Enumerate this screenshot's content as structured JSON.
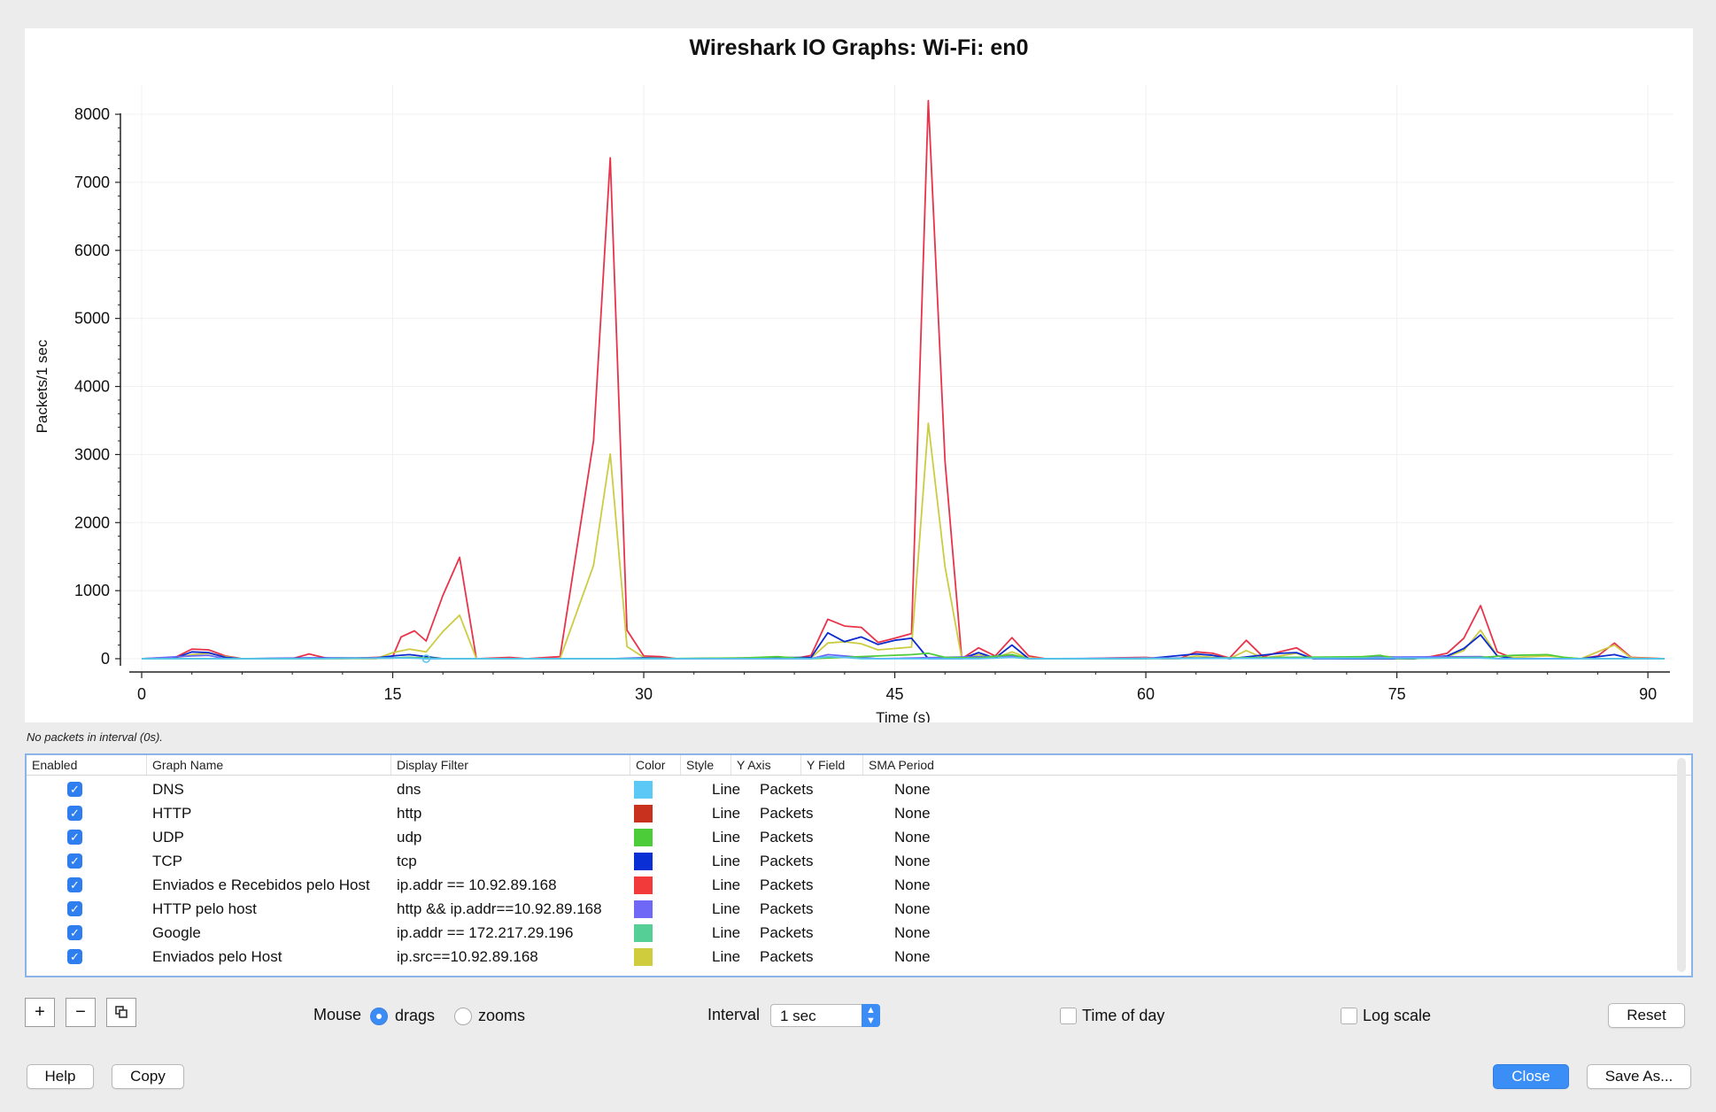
{
  "chart_data": {
    "type": "line",
    "title": "Wireshark IO Graphs: Wi-Fi: en0",
    "xlabel": "Time (s)",
    "ylabel": "Packets/1 sec",
    "xlim": [
      0,
      91
    ],
    "ylim": [
      0,
      8300
    ],
    "xticks": [
      0,
      15,
      30,
      45,
      60,
      75,
      90
    ],
    "yticks": [
      0,
      1000,
      2000,
      3000,
      4000,
      5000,
      6000,
      7000,
      8000
    ],
    "grid": true,
    "series": [
      {
        "name": "Enviados e Recebidos pelo Host",
        "color": "#e8334a",
        "points": [
          [
            0,
            0
          ],
          [
            1,
            10
          ],
          [
            2,
            20
          ],
          [
            3,
            140
          ],
          [
            4,
            130
          ],
          [
            5,
            40
          ],
          [
            6,
            0
          ],
          [
            8,
            0
          ],
          [
            9,
            0
          ],
          [
            10,
            70
          ],
          [
            11,
            10
          ],
          [
            12,
            0
          ],
          [
            14,
            20
          ],
          [
            15,
            30
          ],
          [
            15.5,
            320
          ],
          [
            16.3,
            410
          ],
          [
            17,
            260
          ],
          [
            18,
            930
          ],
          [
            19,
            1490
          ],
          [
            20,
            0
          ],
          [
            22,
            20
          ],
          [
            23,
            0
          ],
          [
            25,
            30
          ],
          [
            27,
            3200
          ],
          [
            28,
            7360
          ],
          [
            29,
            420
          ],
          [
            30,
            40
          ],
          [
            31,
            30
          ],
          [
            32,
            0
          ],
          [
            34,
            0
          ],
          [
            36,
            0
          ],
          [
            38,
            0
          ],
          [
            39,
            0
          ],
          [
            40,
            50
          ],
          [
            41,
            580
          ],
          [
            42,
            480
          ],
          [
            43,
            460
          ],
          [
            44,
            240
          ],
          [
            45,
            300
          ],
          [
            46,
            370
          ],
          [
            47,
            8200
          ],
          [
            48,
            2900
          ],
          [
            49,
            0
          ],
          [
            50,
            160
          ],
          [
            51,
            40
          ],
          [
            52,
            310
          ],
          [
            53,
            40
          ],
          [
            54,
            0
          ],
          [
            56,
            0
          ],
          [
            58,
            10
          ],
          [
            60,
            20
          ],
          [
            61,
            0
          ],
          [
            62,
            0
          ],
          [
            63,
            100
          ],
          [
            64,
            80
          ],
          [
            65,
            10
          ],
          [
            66,
            270
          ],
          [
            67,
            30
          ],
          [
            68,
            100
          ],
          [
            69,
            160
          ],
          [
            70,
            10
          ],
          [
            72,
            0
          ],
          [
            75,
            0
          ],
          [
            76,
            0
          ],
          [
            77,
            30
          ],
          [
            78,
            80
          ],
          [
            79,
            300
          ],
          [
            80,
            780
          ],
          [
            81,
            100
          ],
          [
            82,
            0
          ],
          [
            84,
            0
          ],
          [
            86,
            0
          ],
          [
            87,
            40
          ],
          [
            88,
            230
          ],
          [
            89,
            20
          ],
          [
            90,
            10
          ],
          [
            91,
            0
          ]
        ]
      },
      {
        "name": "Enviados pelo Host",
        "color": "#cccc44",
        "points": [
          [
            0,
            0
          ],
          [
            2,
            10
          ],
          [
            3,
            60
          ],
          [
            4,
            80
          ],
          [
            5,
            30
          ],
          [
            6,
            0
          ],
          [
            9,
            0
          ],
          [
            10,
            0
          ],
          [
            14,
            0
          ],
          [
            15,
            90
          ],
          [
            16,
            140
          ],
          [
            17,
            100
          ],
          [
            18,
            400
          ],
          [
            19,
            640
          ],
          [
            20,
            0
          ],
          [
            25,
            0
          ],
          [
            27,
            1370
          ],
          [
            28,
            3010
          ],
          [
            29,
            180
          ],
          [
            30,
            20
          ],
          [
            32,
            0
          ],
          [
            36,
            10
          ],
          [
            38,
            20
          ],
          [
            40,
            10
          ],
          [
            41,
            230
          ],
          [
            42,
            250
          ],
          [
            43,
            220
          ],
          [
            44,
            130
          ],
          [
            45,
            150
          ],
          [
            46,
            170
          ],
          [
            47,
            3460
          ],
          [
            48,
            1350
          ],
          [
            49,
            0
          ],
          [
            50,
            60
          ],
          [
            51,
            10
          ],
          [
            52,
            100
          ],
          [
            53,
            10
          ],
          [
            54,
            0
          ],
          [
            58,
            0
          ],
          [
            60,
            10
          ],
          [
            62,
            0
          ],
          [
            63,
            40
          ],
          [
            65,
            0
          ],
          [
            66,
            120
          ],
          [
            67,
            10
          ],
          [
            68,
            40
          ],
          [
            69,
            80
          ],
          [
            70,
            0
          ],
          [
            72,
            20
          ],
          [
            74,
            40
          ],
          [
            76,
            0
          ],
          [
            78,
            30
          ],
          [
            79,
            120
          ],
          [
            80,
            420
          ],
          [
            81,
            40
          ],
          [
            82,
            20
          ],
          [
            84,
            40
          ],
          [
            86,
            0
          ],
          [
            88,
            200
          ],
          [
            89,
            10
          ],
          [
            91,
            0
          ]
        ]
      },
      {
        "name": "TCP",
        "color": "#0b2bcf",
        "points": [
          [
            0,
            0
          ],
          [
            2,
            10
          ],
          [
            3,
            100
          ],
          [
            4,
            90
          ],
          [
            5,
            20
          ],
          [
            6,
            0
          ],
          [
            10,
            10
          ],
          [
            14,
            10
          ],
          [
            15,
            40
          ],
          [
            16,
            60
          ],
          [
            17,
            30
          ],
          [
            18,
            0
          ],
          [
            20,
            0
          ],
          [
            28,
            0
          ],
          [
            30,
            10
          ],
          [
            32,
            0
          ],
          [
            40,
            20
          ],
          [
            41,
            380
          ],
          [
            42,
            250
          ],
          [
            43,
            320
          ],
          [
            44,
            210
          ],
          [
            45,
            270
          ],
          [
            46,
            300
          ],
          [
            47,
            0
          ],
          [
            49,
            0
          ],
          [
            50,
            90
          ],
          [
            51,
            10
          ],
          [
            52,
            200
          ],
          [
            53,
            0
          ],
          [
            60,
            0
          ],
          [
            63,
            70
          ],
          [
            64,
            50
          ],
          [
            65,
            0
          ],
          [
            68,
            80
          ],
          [
            69,
            90
          ],
          [
            70,
            0
          ],
          [
            76,
            0
          ],
          [
            78,
            40
          ],
          [
            79,
            150
          ],
          [
            80,
            350
          ],
          [
            81,
            40
          ],
          [
            82,
            0
          ],
          [
            86,
            0
          ],
          [
            88,
            60
          ],
          [
            89,
            0
          ],
          [
            91,
            0
          ]
        ]
      },
      {
        "name": "HTTP pelo host",
        "color": "#6b66f5",
        "points": [
          [
            0,
            0
          ],
          [
            3,
            40
          ],
          [
            4,
            50
          ],
          [
            5,
            0
          ],
          [
            15,
            10
          ],
          [
            16,
            20
          ],
          [
            17,
            0
          ],
          [
            40,
            0
          ],
          [
            41,
            60
          ],
          [
            42,
            40
          ],
          [
            43,
            20
          ],
          [
            44,
            0
          ],
          [
            52,
            40
          ],
          [
            53,
            0
          ],
          [
            80,
            30
          ],
          [
            81,
            0
          ],
          [
            91,
            0
          ]
        ]
      },
      {
        "name": "UDP",
        "color": "#4fcc3a",
        "points": [
          [
            0,
            0
          ],
          [
            5,
            0
          ],
          [
            10,
            0
          ],
          [
            15,
            10
          ],
          [
            16,
            20
          ],
          [
            17,
            10
          ],
          [
            18,
            0
          ],
          [
            30,
            0
          ],
          [
            36,
            10
          ],
          [
            38,
            30
          ],
          [
            39,
            10
          ],
          [
            40,
            0
          ],
          [
            44,
            40
          ],
          [
            46,
            60
          ],
          [
            47,
            80
          ],
          [
            48,
            20
          ],
          [
            50,
            10
          ],
          [
            52,
            60
          ],
          [
            53,
            0
          ],
          [
            60,
            0
          ],
          [
            73,
            30
          ],
          [
            74,
            50
          ],
          [
            75,
            0
          ],
          [
            80,
            20
          ],
          [
            82,
            50
          ],
          [
            84,
            60
          ],
          [
            85,
            20
          ],
          [
            86,
            0
          ],
          [
            91,
            0
          ]
        ]
      },
      {
        "name": "DNS",
        "color": "#58c4f5",
        "points": [
          [
            0,
            0
          ],
          [
            10,
            0
          ],
          [
            15,
            10
          ],
          [
            16,
            10
          ],
          [
            17,
            0
          ],
          [
            30,
            0
          ],
          [
            40,
            0
          ],
          [
            41,
            30
          ],
          [
            42,
            20
          ],
          [
            43,
            0
          ],
          [
            50,
            0
          ],
          [
            52,
            20
          ],
          [
            53,
            0
          ],
          [
            80,
            10
          ],
          [
            81,
            0
          ],
          [
            91,
            0
          ]
        ]
      }
    ]
  },
  "status": "No packets in interval (0s).",
  "table": {
    "headers": {
      "enabled": "Enabled",
      "name": "Graph Name",
      "filter": "Display Filter",
      "color": "Color",
      "style": "Style",
      "yaxis": "Y Axis",
      "yfield": "Y Field",
      "sma": "SMA Period"
    },
    "rows": [
      {
        "name": "DNS",
        "filter": "dns",
        "color": "#5bc8f5",
        "style": "Line",
        "yaxis": "Packets",
        "yfield": "",
        "sma": "None"
      },
      {
        "name": "HTTP",
        "filter": "http",
        "color": "#c8311e",
        "style": "Line",
        "yaxis": "Packets",
        "yfield": "",
        "sma": "None"
      },
      {
        "name": "UDP",
        "filter": "udp",
        "color": "#4ccc38",
        "style": "Line",
        "yaxis": "Packets",
        "yfield": "",
        "sma": "None"
      },
      {
        "name": "TCP",
        "filter": "tcp",
        "color": "#0a2fd4",
        "style": "Line",
        "yaxis": "Packets",
        "yfield": "",
        "sma": "None"
      },
      {
        "name": "Enviados e Recebidos pelo Host",
        "filter": "ip.addr == 10.92.89.168",
        "color": "#f23a3a",
        "style": "Line",
        "yaxis": "Packets",
        "yfield": "",
        "sma": "None"
      },
      {
        "name": "HTTP pelo host",
        "filter": "http && ip.addr==10.92.89.168",
        "color": "#6f68f7",
        "style": "Line",
        "yaxis": "Packets",
        "yfield": "",
        "sma": "None"
      },
      {
        "name": "Google",
        "filter": "ip.addr == 172.217.29.196",
        "color": "#55cf96",
        "style": "Line",
        "yaxis": "Packets",
        "yfield": "",
        "sma": "None"
      },
      {
        "name": "Enviados pelo Host",
        "filter": "ip.src==10.92.89.168",
        "color": "#cfcc3d",
        "style": "Line",
        "yaxis": "Packets",
        "yfield": "",
        "sma": "None"
      }
    ]
  },
  "controls": {
    "add_icon": "+",
    "remove_icon": "−",
    "copy_graph_icon": "copy-icon",
    "mouse_label": "Mouse",
    "drags_label": "drags",
    "zooms_label": "zooms",
    "mouse_mode": "drags",
    "interval_label": "Interval",
    "interval_value": "1 sec",
    "time_of_day_label": "Time of day",
    "log_scale_label": "Log scale",
    "reset_label": "Reset"
  },
  "footer": {
    "help_label": "Help",
    "copy_label": "Copy",
    "close_label": "Close",
    "save_as_label": "Save As..."
  }
}
